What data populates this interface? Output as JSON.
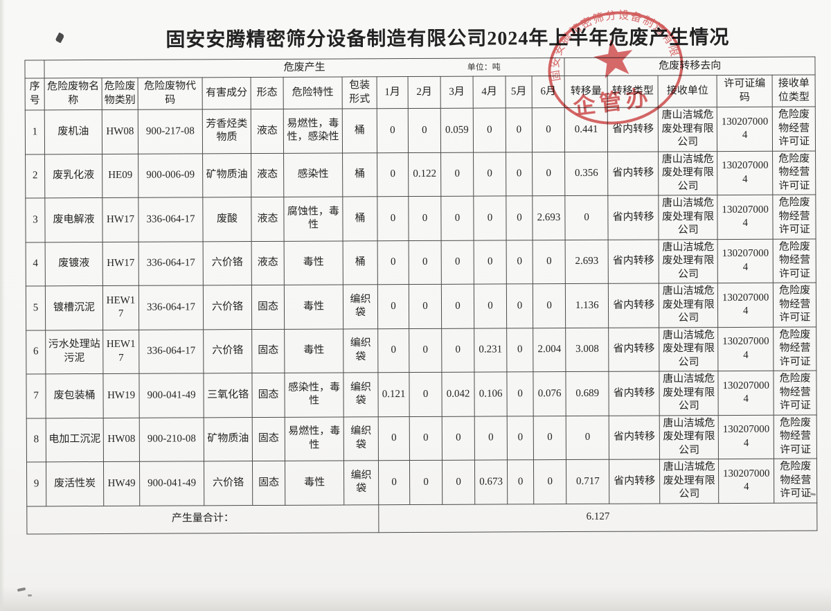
{
  "title": "固安安腾精密筛分设备制造有限公司2024年上半年危废产生情况",
  "table": {
    "band": {
      "production_label": "危废产生",
      "unit_label": "单位：吨",
      "transfer_label": "危废转移去向"
    },
    "headers": [
      "序号",
      "危险废物名称",
      "危险废物类别",
      "危险废物代码",
      "有害成分",
      "形态",
      "危险特性",
      "包装形式",
      "1月",
      "2月",
      "3月",
      "4月",
      "5月",
      "6月",
      "转移量",
      "转移类型",
      "接收单位",
      "许可证编码",
      "接收单位类型"
    ],
    "rows": [
      [
        "1",
        "废机油",
        "HW08",
        "900-217-08",
        "芳香烃类物质",
        "液态",
        "易燃性，毒性，感染性",
        "桶",
        "0",
        "0",
        "0.059",
        "0",
        "0",
        "0",
        "0.441",
        "省内转移",
        "唐山洁城危废处理有限公司",
        "1302070004",
        "危险废物经营许可证"
      ],
      [
        "2",
        "废乳化液",
        "HE09",
        "900-006-09",
        "矿物质油",
        "液态",
        "感染性",
        "桶",
        "0",
        "0.122",
        "0",
        "0",
        "0",
        "0",
        "0.356",
        "省内转移",
        "唐山洁城危废处理有限公司",
        "1302070004",
        "危险废物经营许可证"
      ],
      [
        "3",
        "废电解液",
        "HW17",
        "336-064-17",
        "废酸",
        "液态",
        "腐蚀性，毒性",
        "桶",
        "0",
        "0",
        "0",
        "0",
        "0",
        "2.693",
        "0",
        "省内转移",
        "唐山洁城危废处理有限公司",
        "1302070004",
        "危险废物经营许可证"
      ],
      [
        "4",
        "废镀液",
        "HW17",
        "336-064-17",
        "六价铬",
        "液态",
        "毒性",
        "桶",
        "0",
        "0",
        "0",
        "0",
        "0",
        "0",
        "2.693",
        "省内转移",
        "唐山洁城危废处理有限公司",
        "1302070004",
        "危险废物经营许可证"
      ],
      [
        "5",
        "镀槽沉泥",
        "HEW17",
        "336-064-17",
        "六价铬",
        "固态",
        "毒性",
        "编织袋",
        "0",
        "0",
        "0",
        "0",
        "0",
        "0",
        "1.136",
        "省内转移",
        "唐山洁城危废处理有限公司",
        "1302070004",
        "危险废物经营许可证"
      ],
      [
        "6",
        "污水处理站污泥",
        "HEW17",
        "336-064-17",
        "六价铬",
        "固态",
        "毒性",
        "编织袋",
        "0",
        "0",
        "0",
        "0.231",
        "0",
        "2.004",
        "3.008",
        "省内转移",
        "唐山洁城危废处理有限公司",
        "1302070004",
        "危险废物经营许可证"
      ],
      [
        "7",
        "废包装桶",
        "HW19",
        "900-041-49",
        "三氧化铬",
        "固态",
        "感染性，毒性",
        "编织袋",
        "0.121",
        "0",
        "0.042",
        "0.106",
        "0",
        "0.076",
        "0.689",
        "省内转移",
        "唐山洁城危废处理有限公司",
        "1302070004",
        "危险废物经营许可证"
      ],
      [
        "8",
        "电加工沉泥",
        "HW08",
        "900-210-08",
        "矿物质油",
        "固态",
        "易燃性，毒性",
        "编织袋",
        "0",
        "0",
        "0",
        "0",
        "0",
        "0",
        "0",
        "省内转移",
        "唐山洁城危废处理有限公司",
        "1302070004",
        "危险废物经营许可证"
      ],
      [
        "9",
        "废活性炭",
        "HW49",
        "900-041-49",
        "六价铬",
        "固态",
        "毒性",
        "编织袋",
        "0",
        "0",
        "0",
        "0.673",
        "0",
        "0",
        "0.717",
        "省内转移",
        "唐山洁城危废处理有限公司",
        "1302070004",
        "危险废物经营许可证"
      ]
    ],
    "footer": {
      "label": "产生量合计：",
      "total": "6.127"
    }
  },
  "stamp": {
    "ring_text": "固安安腾精密筛分设备制造有限公司",
    "center_text": "企管办"
  },
  "stamp_color": "#cf4040"
}
